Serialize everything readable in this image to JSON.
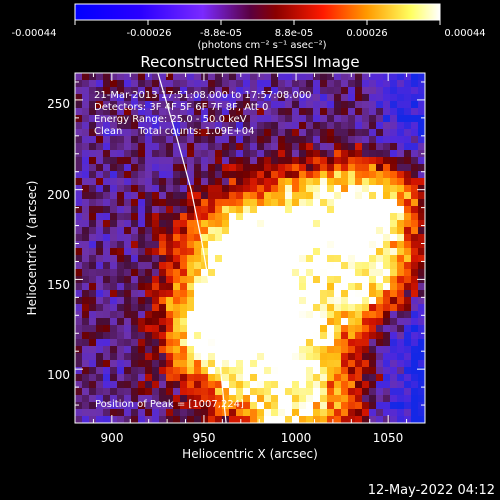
{
  "colorbar": {
    "tick_labels": [
      "-0.00044",
      "-0.00026",
      "-8.8e-05",
      "8.8e-05",
      "0.00026",
      "0.00044"
    ],
    "range": [
      -0.00044,
      0.00044
    ],
    "unit_label": "(photons cm⁻² s⁻¹ asec⁻²)"
  },
  "chart_data": {
    "type": "heatmap",
    "title": "Reconstructed RHESSI Image",
    "xlabel": "Heliocentric X (arcsec)",
    "ylabel": "Heliocentric Y (arcsec)",
    "xlim": [
      880,
      1070
    ],
    "ylim": [
      70,
      265
    ],
    "x_ticks": [
      900,
      950,
      1000,
      1050
    ],
    "y_ticks": [
      100,
      150,
      200,
      250
    ],
    "colorscale": "RHESSI red-temperature (blue → purple → red → orange → yellow → white)",
    "annotations": [
      "21-Mar-2013 17:51:08.000 to 17:57:08.000",
      "Detectors: 3F 4F 5F 6F 7F 8F, Att 0",
      "Energy Range: 25.0 - 50.0 keV",
      "Clean     Total counts: 1.09E+04"
    ],
    "peak_label": "Position of Peak = [1007,224]",
    "peak_position": [
      1007,
      224
    ],
    "limb_curve": [
      [
        925,
        265
      ],
      [
        935,
        230
      ],
      [
        943,
        200
      ],
      [
        949,
        170
      ],
      [
        954,
        140
      ],
      [
        958,
        110
      ],
      [
        961,
        80
      ],
      [
        962,
        70
      ]
    ]
  },
  "footer": {
    "timestamp": "12-May-2022 04:12"
  }
}
